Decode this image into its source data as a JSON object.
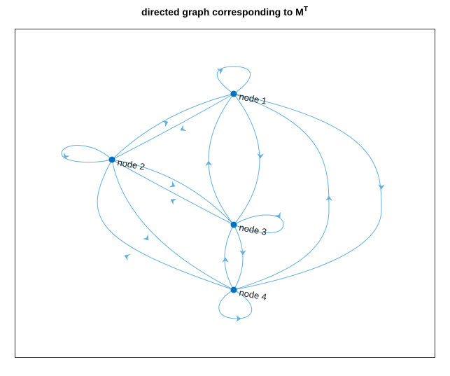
{
  "title": {
    "text": "directed graph corresponding to M",
    "superscript": "T"
  },
  "nodes": [
    {
      "label": "node 1"
    },
    {
      "label": "node 2"
    },
    {
      "label": "node 3"
    },
    {
      "label": "node 4"
    }
  ]
}
